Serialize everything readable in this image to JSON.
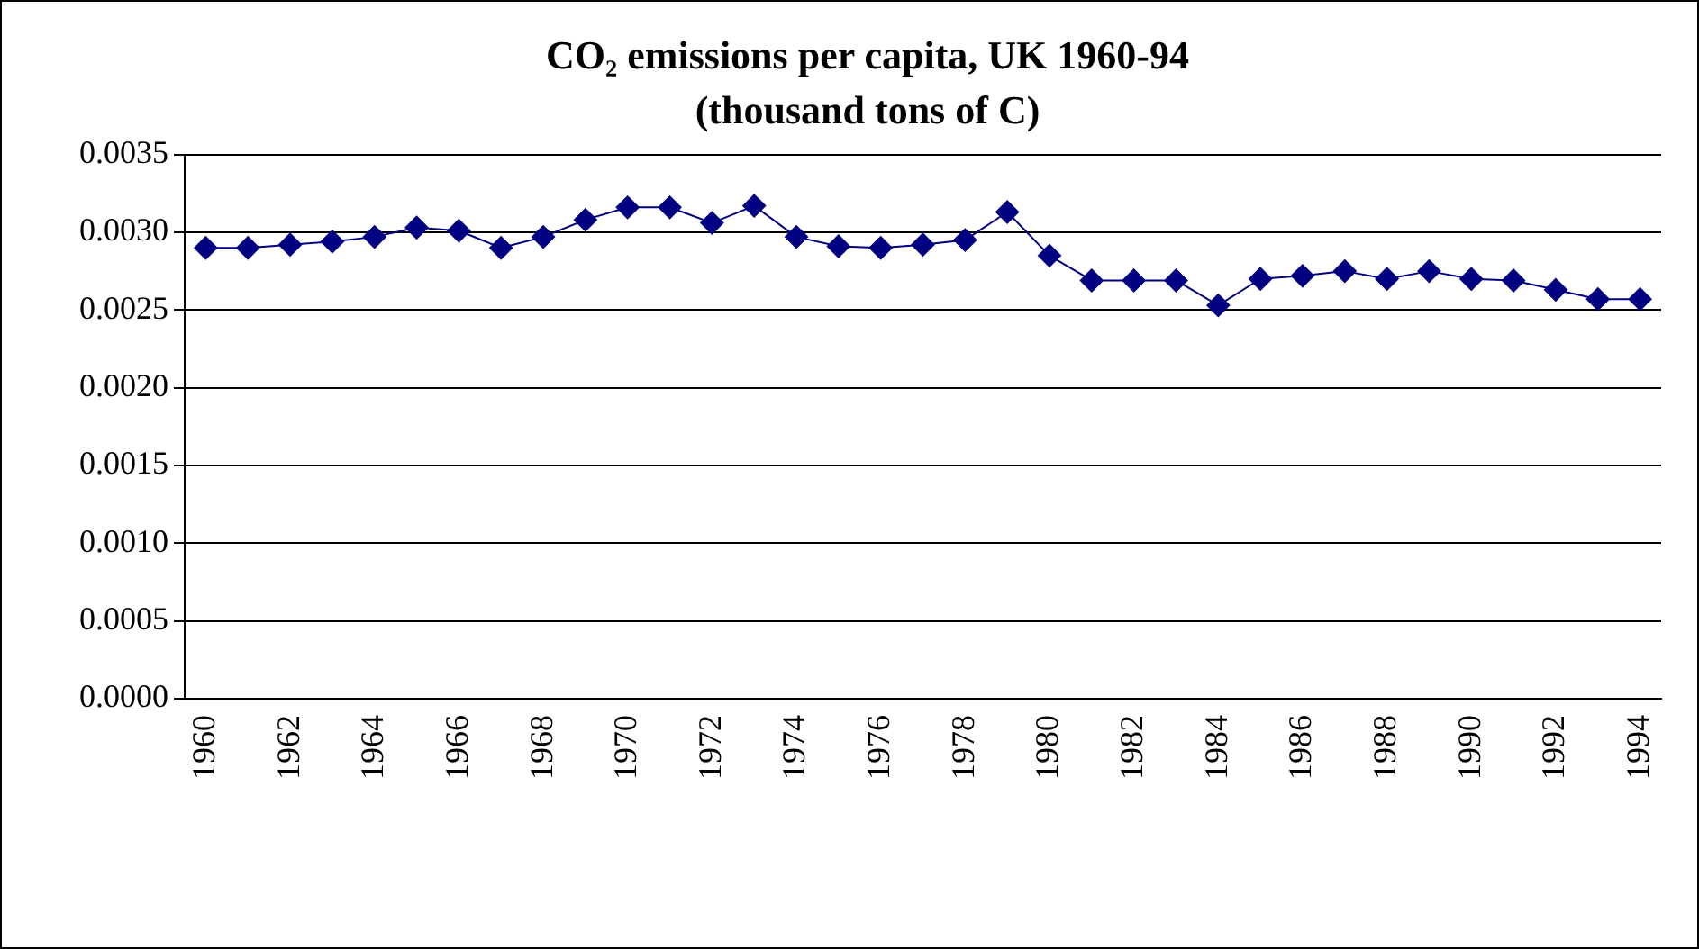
{
  "chart_data": {
    "type": "line",
    "title": "CO₂ emissions per capita, UK 1960-94",
    "subtitle": "(thousand tons of C)",
    "categories": [
      "1960",
      null,
      "1962",
      null,
      "1964",
      null,
      "1966",
      null,
      "1968",
      null,
      "1970",
      null,
      "1972",
      null,
      "1974",
      null,
      "1976",
      null,
      "1978",
      null,
      "1980",
      null,
      "1982",
      null,
      "1984",
      null,
      "1986",
      null,
      "1988",
      null,
      "1990",
      null,
      "1992",
      null,
      "1994"
    ],
    "series": [
      {
        "color": "#000080",
        "values": [
          0.0029,
          0.0029,
          0.00292,
          0.00294,
          0.00297,
          0.00303,
          0.00301,
          0.0029,
          0.00297,
          0.00308,
          0.00316,
          0.00316,
          0.00306,
          0.00317,
          0.00297,
          0.00291,
          0.0029,
          0.00292,
          0.00295,
          0.00313,
          0.00285,
          0.00269,
          0.00269,
          0.00269,
          0.00253,
          0.0027,
          0.00272,
          0.00275,
          0.0027,
          0.00275,
          0.0027,
          0.00269,
          0.00263,
          0.00257,
          0.00257
        ]
      }
    ],
    "ylim": [
      0,
      0.0035
    ],
    "yticks": [
      {
        "value": 0,
        "label": "0.0000"
      },
      {
        "value": 0.0005,
        "label": "0.0005"
      },
      {
        "value": 0.001,
        "label": "0.0010"
      },
      {
        "value": 0.0015,
        "label": "0.0015"
      },
      {
        "value": 0.002,
        "label": "0.0020"
      },
      {
        "value": 0.0025,
        "label": "0.0025"
      },
      {
        "value": 0.003,
        "label": "0.0030"
      },
      {
        "value": 0.0035,
        "label": "0.0035"
      }
    ],
    "grid": "y",
    "legend": false,
    "marker": "diamond",
    "line_style": "solid"
  }
}
